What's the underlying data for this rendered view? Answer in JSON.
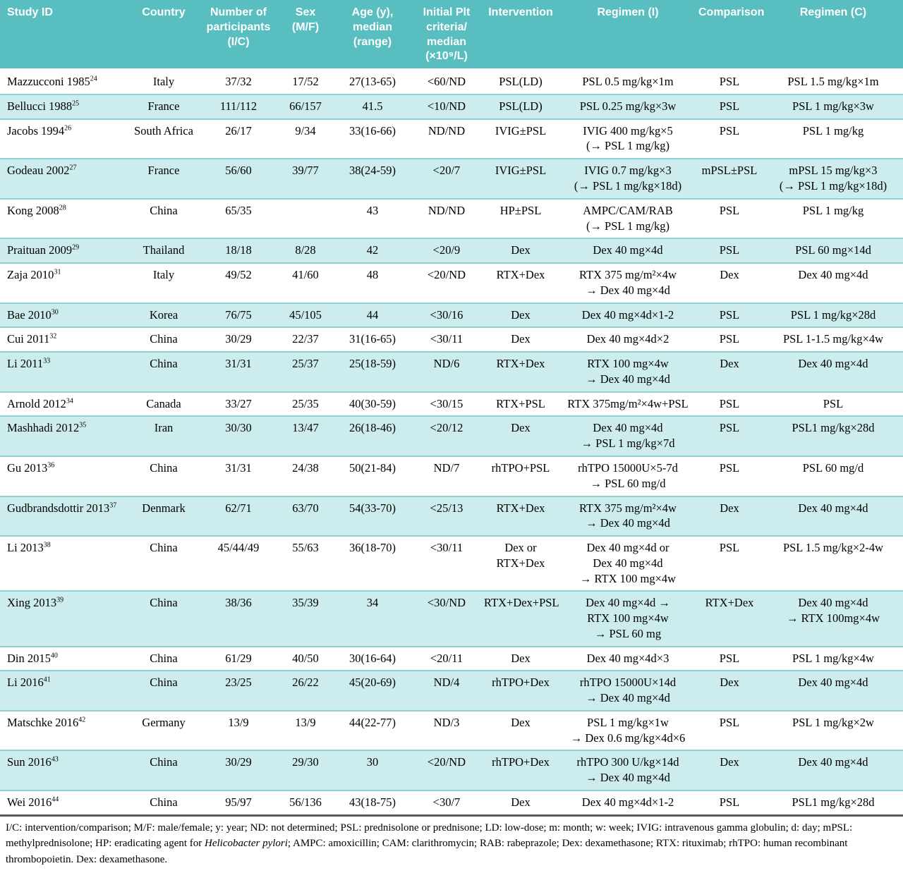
{
  "colors": {
    "header_bg": "#59bec0",
    "header_text": "#ffffff",
    "row_alt_bg": "#cdeced",
    "row_divider": "#8fd2d3",
    "bottom_rule": "#58595b",
    "body_text": "#000000"
  },
  "table": {
    "columns": [
      {
        "key": "study",
        "label": "Study ID"
      },
      {
        "key": "country",
        "label": "Country"
      },
      {
        "key": "participants",
        "label": "Number of\nparticipants (I/C)"
      },
      {
        "key": "sex",
        "label": "Sex\n(M/F)"
      },
      {
        "key": "age",
        "label": "Age (y),\nmedian (range)"
      },
      {
        "key": "plt",
        "label": "Initial Plt\ncriteria/\nmedian\n(×10⁹/L)"
      },
      {
        "key": "intervention",
        "label": "Intervention"
      },
      {
        "key": "regimen_i",
        "label": "Regimen (I)"
      },
      {
        "key": "comparison",
        "label": "Comparison"
      },
      {
        "key": "regimen_c",
        "label": "Regimen (C)"
      }
    ],
    "rows": [
      {
        "study": "Mazzucconi 1985",
        "ref": "24",
        "country": "Italy",
        "participants": "37/32",
        "sex": "17/52",
        "age": "27(13-65)",
        "plt": "<60/ND",
        "intervention": "PSL(LD)",
        "regimen_i": "PSL 0.5 mg/kg×1m",
        "comparison": "PSL",
        "regimen_c": "PSL 1.5 mg/kg×1m"
      },
      {
        "study": "Bellucci 1988",
        "ref": "25",
        "country": "France",
        "participants": "111/112",
        "sex": "66/157",
        "age": "41.5",
        "plt": "<10/ND",
        "intervention": "PSL(LD)",
        "regimen_i": "PSL 0.25 mg/kg×3w",
        "comparison": "PSL",
        "regimen_c": "PSL 1 mg/kg×3w"
      },
      {
        "study": "Jacobs 1994",
        "ref": "26",
        "country": "South Africa",
        "participants": "26/17",
        "sex": "9/34",
        "age": "33(16-66)",
        "plt": "ND/ND",
        "intervention": "IVIG±PSL",
        "regimen_i": "IVIG 400 mg/kg×5\n(→ PSL 1 mg/kg)",
        "comparison": "PSL",
        "regimen_c": "PSL 1 mg/kg"
      },
      {
        "study": "Godeau 2002",
        "ref": "27",
        "country": "France",
        "participants": "56/60",
        "sex": "39/77",
        "age": "38(24-59)",
        "plt": "<20/7",
        "intervention": "IVIG±PSL",
        "regimen_i": "IVIG 0.7 mg/kg×3\n(→ PSL 1 mg/kg×18d)",
        "comparison": "mPSL±PSL",
        "regimen_c": "mPSL 15 mg/kg×3\n(→ PSL 1 mg/kg×18d)"
      },
      {
        "study": "Kong 2008",
        "ref": "28",
        "country": "China",
        "participants": "65/35",
        "sex": "",
        "age": "43",
        "plt": "ND/ND",
        "intervention": "HP±PSL",
        "regimen_i": "AMPC/CAM/RAB\n(→ PSL 1 mg/kg)",
        "comparison": "PSL",
        "regimen_c": "PSL 1 mg/kg"
      },
      {
        "study": "Praituan 2009",
        "ref": "29",
        "country": "Thailand",
        "participants": "18/18",
        "sex": "8/28",
        "age": "42",
        "plt": "<20/9",
        "intervention": "Dex",
        "regimen_i": "Dex 40 mg×4d",
        "comparison": "PSL",
        "regimen_c": "PSL 60 mg×14d"
      },
      {
        "study": "Zaja 2010",
        "ref": "31",
        "country": "Italy",
        "participants": "49/52",
        "sex": "41/60",
        "age": "48",
        "plt": "<20/ND",
        "intervention": "RTX+Dex",
        "regimen_i": "RTX 375 mg/m²×4w\n→ Dex 40 mg×4d",
        "comparison": "Dex",
        "regimen_c": "Dex 40 mg×4d"
      },
      {
        "study": "Bae 2010",
        "ref": "30",
        "country": "Korea",
        "participants": "76/75",
        "sex": "45/105",
        "age": "44",
        "plt": "<30/16",
        "intervention": "Dex",
        "regimen_i": "Dex 40 mg×4d×1-2",
        "comparison": "PSL",
        "regimen_c": "PSL 1 mg/kg×28d"
      },
      {
        "study": "Cui 2011",
        "ref": "32",
        "country": "China",
        "participants": "30/29",
        "sex": "22/37",
        "age": "31(16-65)",
        "plt": "<30/11",
        "intervention": "Dex",
        "regimen_i": "Dex 40 mg×4d×2",
        "comparison": "PSL",
        "regimen_c": "PSL 1-1.5 mg/kg×4w"
      },
      {
        "study": "Li 2011",
        "ref": "33",
        "country": "China",
        "participants": "31/31",
        "sex": "25/37",
        "age": "25(18-59)",
        "plt": "ND/6",
        "intervention": "RTX+Dex",
        "regimen_i": "RTX 100 mg×4w\n→ Dex 40 mg×4d",
        "comparison": "Dex",
        "regimen_c": "Dex 40 mg×4d"
      },
      {
        "study": "Arnold 2012",
        "ref": "34",
        "country": "Canada",
        "participants": "33/27",
        "sex": "25/35",
        "age": "40(30-59)",
        "plt": "<30/15",
        "intervention": "RTX+PSL",
        "regimen_i": "RTX 375mg/m²×4w+PSL",
        "comparison": "PSL",
        "regimen_c": "PSL"
      },
      {
        "study": "Mashhadi 2012",
        "ref": "35",
        "country": "Iran",
        "participants": "30/30",
        "sex": "13/47",
        "age": "26(18-46)",
        "plt": "<20/12",
        "intervention": "Dex",
        "regimen_i": "Dex 40 mg×4d\n→ PSL 1 mg/kg×7d",
        "comparison": "PSL",
        "regimen_c": "PSL1 mg/kg×28d"
      },
      {
        "study": "Gu 2013",
        "ref": "36",
        "country": "China",
        "participants": "31/31",
        "sex": "24/38",
        "age": "50(21-84)",
        "plt": "ND/7",
        "intervention": "rhTPO+PSL",
        "regimen_i": "rhTPO 15000U×5-7d\n→ PSL 60 mg/d",
        "comparison": "PSL",
        "regimen_c": "PSL 60 mg/d"
      },
      {
        "study": "Gudbrandsdottir 2013",
        "ref": "37",
        "country": "Denmark",
        "participants": "62/71",
        "sex": "63/70",
        "age": "54(33-70)",
        "plt": "<25/13",
        "intervention": "RTX+Dex",
        "regimen_i": "RTX 375 mg/m²×4w\n→ Dex 40 mg×4d",
        "comparison": "Dex",
        "regimen_c": "Dex 40 mg×4d"
      },
      {
        "study": "Li 2013",
        "ref": "38",
        "country": "China",
        "participants": "45/44/49",
        "sex": "55/63",
        "age": "36(18-70)",
        "plt": "<30/11",
        "intervention": "Dex or\nRTX+Dex",
        "regimen_i": "Dex 40 mg×4d or\nDex 40 mg×4d\n→ RTX 100 mg×4w",
        "comparison": "PSL",
        "regimen_c": "PSL 1.5 mg/kg×2-4w"
      },
      {
        "study": "Xing 2013",
        "ref": "39",
        "country": "China",
        "participants": "38/36",
        "sex": "35/39",
        "age": "34",
        "plt": "<30/ND",
        "intervention": "RTX+Dex+PSL",
        "regimen_i": "Dex 40 mg×4d →\nRTX 100 mg×4w\n→ PSL 60 mg",
        "comparison": "RTX+Dex",
        "regimen_c": "Dex 40 mg×4d\n→ RTX 100mg×4w"
      },
      {
        "study": "Din 2015",
        "ref": "40",
        "country": "China",
        "participants": "61/29",
        "sex": "40/50",
        "age": "30(16-64)",
        "plt": "<20/11",
        "intervention": "Dex",
        "regimen_i": "Dex 40 mg×4d×3",
        "comparison": "PSL",
        "regimen_c": "PSL 1 mg/kg×4w"
      },
      {
        "study": "Li 2016",
        "ref": "41",
        "country": "China",
        "participants": "23/25",
        "sex": "26/22",
        "age": "45(20-69)",
        "plt": "ND/4",
        "intervention": "rhTPO+Dex",
        "regimen_i": "rhTPO 15000U×14d\n→ Dex 40 mg×4d",
        "comparison": "Dex",
        "regimen_c": "Dex 40 mg×4d"
      },
      {
        "study": "Matschke 2016",
        "ref": "42",
        "country": "Germany",
        "participants": "13/9",
        "sex": "13/9",
        "age": "44(22-77)",
        "plt": "ND/3",
        "intervention": "Dex",
        "regimen_i": "PSL 1 mg/kg×1w\n→ Dex 0.6 mg/kg×4d×6",
        "comparison": "PSL",
        "regimen_c": "PSL 1 mg/kg×2w"
      },
      {
        "study": "Sun 2016",
        "ref": "43",
        "country": "China",
        "participants": "30/29",
        "sex": "29/30",
        "age": "30",
        "plt": "<20/ND",
        "intervention": "rhTPO+Dex",
        "regimen_i": "rhTPO 300 U/kg×14d\n→ Dex 40 mg×4d",
        "comparison": "Dex",
        "regimen_c": "Dex 40 mg×4d"
      },
      {
        "study": "Wei 2016",
        "ref": "44",
        "country": "China",
        "participants": "95/97",
        "sex": "56/136",
        "age": "43(18-75)",
        "plt": "<30/7",
        "intervention": "Dex",
        "regimen_i": "Dex 40 mg×4d×1-2",
        "comparison": "PSL",
        "regimen_c": "PSL1 mg/kg×28d"
      }
    ]
  },
  "footnote": {
    "part1": "I/C: intervention/comparison; M/F: male/female; y: year; ND: not determined; PSL: prednisolone or prednisone; LD: low-dose; m: month; w: week; IVIG: intravenous gamma globulin; d: day; mPSL: methylprednisolone; HP: eradicating agent for ",
    "italic": "Helicobacter pylori",
    "part2": "; AMPC: amoxicillin; CAM: clarithromycin; RAB: rabeprazole; Dex: dexamethasone; RTX: rituximab; rhTPO: human recombinant thrombopoietin. Dex: dexamethasone."
  }
}
